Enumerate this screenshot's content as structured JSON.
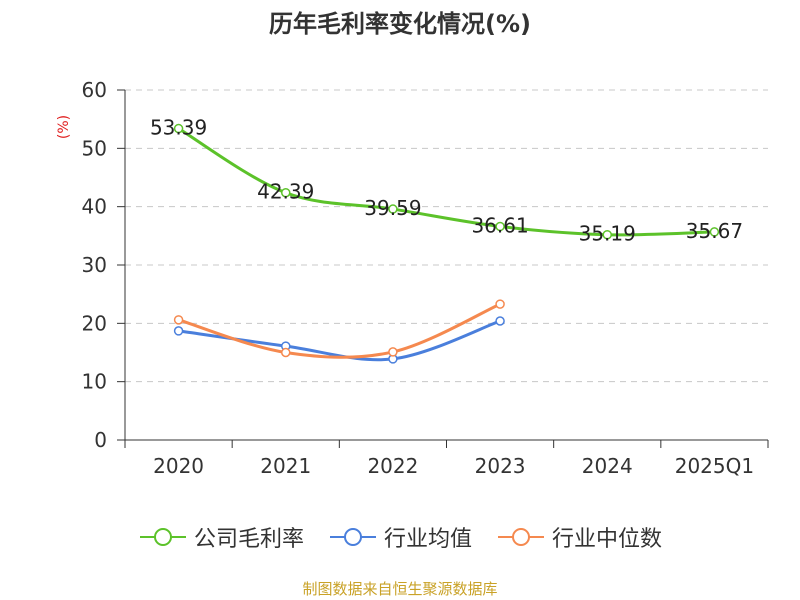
{
  "chart_data": {
    "type": "line",
    "title": "历年毛利率变化情况(%)",
    "ylabel": "(%)",
    "categories": [
      "2020",
      "2021",
      "2022",
      "2023",
      "2024",
      "2025Q1"
    ],
    "ylim": [
      0,
      60
    ],
    "yticks": [
      0,
      10,
      20,
      30,
      40,
      50,
      60
    ],
    "grid": true,
    "legend_position": "bottom",
    "series": [
      {
        "name": "公司毛利率",
        "color": "#5cc22a",
        "values": [
          53.39,
          42.39,
          39.59,
          36.61,
          35.19,
          35.67
        ],
        "labels": [
          "53.39",
          "42.39",
          "39.59",
          "36.61",
          "35.19",
          "35.67"
        ]
      },
      {
        "name": "行业均值",
        "color": "#4a7fdc",
        "values": [
          18.7,
          16.1,
          13.9,
          20.4,
          null,
          null
        ]
      },
      {
        "name": "行业中位数",
        "color": "#f5894f",
        "values": [
          20.6,
          15.0,
          15.1,
          23.3,
          null,
          null
        ]
      }
    ]
  },
  "footer": "制图数据来自恒生聚源数据库"
}
